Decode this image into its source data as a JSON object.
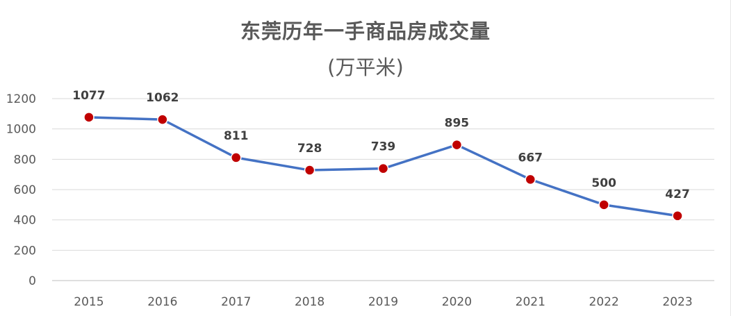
{
  "title": "东莞历年一手商品房成交量",
  "subtitle": "(万平米)",
  "chart_data": {
    "type": "line",
    "title": "东莞历年一手商品房成交量",
    "subtitle": "(万平米)",
    "categories": [
      "2015",
      "2016",
      "2017",
      "2018",
      "2019",
      "2020",
      "2021",
      "2022",
      "2023"
    ],
    "series": [
      {
        "values": [
          1077,
          1062,
          811,
          728,
          739,
          895,
          667,
          500,
          427
        ],
        "line_color": "#4472C4",
        "marker_color": "#C00000"
      }
    ],
    "ylim": [
      0,
      1200
    ],
    "yticks": [
      0,
      200,
      400,
      600,
      800,
      1000,
      1200
    ],
    "grid": true,
    "data_labels": true
  }
}
